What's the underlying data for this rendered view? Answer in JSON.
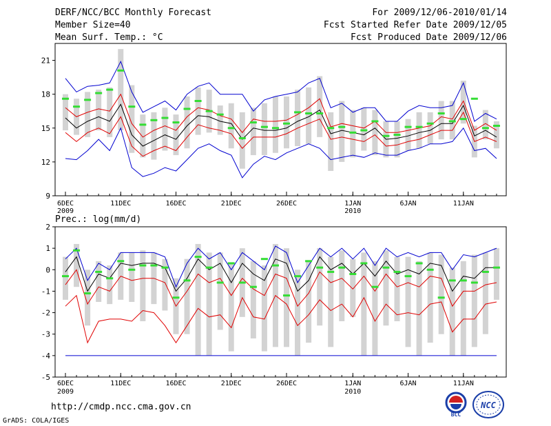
{
  "header": {
    "title": "DERF/NCC/BCC Monthly Forecast",
    "member_size": "Member Size=40",
    "variable": "Mean Surf. Temp.: °C",
    "period": "For 2009/12/06-2010/01/14",
    "started": "Fcst Started Refer Date 2009/12/05",
    "produced": "Fcst Produced Date 2009/12/06"
  },
  "footer": {
    "url": "http://cmdp.ncc.cma.gov.cn",
    "credit": "GrADS: COLA/IGES",
    "logo_left_text": "BCC",
    "logo_right_text": "NCC"
  },
  "colors": {
    "mean": "#000000",
    "spread": "#e00000",
    "extreme": "#0000d0",
    "obs": "#33dd33",
    "box": "#d3d3d3"
  },
  "chart_data": [
    {
      "type": "line",
      "title": "Mean Surf. Temp.: °C",
      "x_tick_labels": [
        "6DEC",
        "11DEC",
        "16DEC",
        "21DEC",
        "26DEC",
        "1JAN",
        "6JAN",
        "11JAN"
      ],
      "x_tick_days": [
        0,
        5,
        10,
        15,
        20,
        26,
        31,
        36
      ],
      "x_year_labels": [
        {
          "day": 0,
          "label": "2009"
        },
        {
          "day": 26,
          "label": "2010"
        }
      ],
      "ylim": [
        9,
        22.5
      ],
      "yticks": [
        9,
        12,
        15,
        18,
        21
      ],
      "series": [
        {
          "name": "max",
          "color_key": "extreme",
          "values": [
            19.4,
            18.2,
            18.7,
            18.8,
            19.0,
            20.9,
            18.2,
            16.4,
            16.9,
            17.4,
            16.6,
            18.0,
            18.7,
            19.0,
            18.0,
            18.0,
            18.0,
            16.5,
            17.5,
            17.8,
            18.0,
            18.2,
            19.0,
            19.4,
            16.8,
            17.2,
            16.4,
            16.8,
            16.8,
            15.6,
            15.6,
            16.5,
            17.0,
            16.8,
            16.8,
            17.0,
            19.0,
            15.6,
            16.3,
            15.8
          ]
        },
        {
          "name": "upper",
          "color_key": "spread",
          "values": [
            16.8,
            16.0,
            16.4,
            16.7,
            16.5,
            18.0,
            15.4,
            14.2,
            14.8,
            15.2,
            14.8,
            16.0,
            16.8,
            16.6,
            16.1,
            15.8,
            14.6,
            15.8,
            15.6,
            15.6,
            15.7,
            16.2,
            16.8,
            17.6,
            15.1,
            15.4,
            15.2,
            15.0,
            15.6,
            14.6,
            14.6,
            14.8,
            15.0,
            15.2,
            16.0,
            15.8,
            17.4,
            14.8,
            15.4,
            14.8
          ]
        },
        {
          "name": "mean",
          "color_key": "mean",
          "values": [
            15.9,
            15.0,
            15.6,
            16.0,
            15.6,
            17.1,
            14.4,
            13.4,
            13.9,
            14.4,
            14.0,
            15.2,
            16.1,
            16.0,
            15.6,
            15.4,
            14.0,
            15.0,
            14.8,
            14.8,
            15.0,
            15.6,
            16.0,
            16.6,
            14.5,
            14.8,
            14.6,
            14.4,
            15.0,
            14.0,
            14.1,
            14.3,
            14.6,
            14.8,
            15.4,
            15.4,
            17.0,
            14.3,
            14.8,
            14.2
          ]
        },
        {
          "name": "lower",
          "color_key": "spread",
          "values": [
            14.6,
            13.8,
            14.6,
            15.0,
            14.5,
            16.0,
            13.4,
            12.5,
            13.0,
            13.4,
            13.0,
            14.2,
            15.3,
            15.0,
            14.8,
            14.5,
            13.2,
            14.2,
            14.2,
            14.2,
            14.5,
            15.0,
            15.4,
            15.8,
            14.0,
            14.2,
            14.0,
            13.8,
            14.4,
            13.4,
            13.5,
            13.8,
            14.0,
            14.4,
            14.8,
            14.8,
            16.4,
            13.8,
            14.2,
            13.8
          ]
        },
        {
          "name": "min",
          "color_key": "extreme",
          "values": [
            12.3,
            12.2,
            13.0,
            14.0,
            13.0,
            15.0,
            11.5,
            10.7,
            11.0,
            11.5,
            11.2,
            12.2,
            13.2,
            13.6,
            13.0,
            12.6,
            10.6,
            11.8,
            12.5,
            12.2,
            12.8,
            13.2,
            13.6,
            13.2,
            12.2,
            12.4,
            12.6,
            12.4,
            12.8,
            12.6,
            12.6,
            13.0,
            13.2,
            13.6,
            13.6,
            13.8,
            15.0,
            13.0,
            13.2,
            12.3
          ]
        },
        {
          "name": "observed",
          "color_key": "obs",
          "values": [
            17.6,
            16.9,
            17.5,
            18.1,
            18.4,
            20.1,
            16.9,
            15.3,
            15.7,
            15.9,
            15.5,
            16.7,
            17.4,
            16.5,
            16.2,
            15.0,
            14.1,
            15.5,
            15.1,
            15.0,
            15.4,
            16.4,
            16.3,
            16.3,
            15.0,
            15.1,
            14.6,
            14.8,
            15.6,
            14.3,
            14.4,
            15.1,
            15.1,
            15.4,
            16.3,
            15.6,
            15.8,
            17.6,
            15.0,
            15.2
          ]
        },
        {
          "name": "box_top",
          "color_key": "box",
          "values": [
            18.0,
            17.6,
            18.2,
            18.4,
            18.6,
            22.0,
            18.8,
            16.2,
            16.4,
            16.8,
            16.2,
            17.8,
            18.6,
            18.4,
            17.0,
            17.2,
            16.4,
            16.8,
            17.2,
            17.8,
            17.8,
            18.4,
            18.6,
            19.6,
            16.4,
            17.4,
            16.6,
            16.8,
            16.6,
            15.6,
            15.6,
            15.8,
            16.4,
            16.4,
            17.4,
            17.4,
            19.2,
            15.2,
            16.6,
            15.6
          ]
        },
        {
          "name": "box_bottom",
          "color_key": "box",
          "values": [
            14.8,
            14.4,
            14.2,
            14.8,
            14.2,
            14.8,
            12.8,
            12.4,
            12.2,
            13.0,
            12.6,
            13.2,
            14.4,
            14.6,
            14.4,
            13.2,
            11.4,
            12.6,
            12.6,
            12.8,
            13.2,
            13.4,
            13.6,
            14.2,
            11.2,
            12.0,
            12.4,
            13.0,
            12.6,
            12.4,
            12.4,
            13.0,
            13.2,
            13.6,
            14.0,
            14.0,
            15.4,
            12.4,
            14.0,
            13.2
          ]
        }
      ]
    },
    {
      "type": "line",
      "title": "Prec.: log(mm/d)",
      "x_tick_labels": [
        "6DEC",
        "11DEC",
        "16DEC",
        "21DEC",
        "26DEC",
        "1JAN",
        "6JAN",
        "11JAN"
      ],
      "x_tick_days": [
        0,
        5,
        10,
        15,
        20,
        26,
        31,
        36
      ],
      "x_year_labels": [
        {
          "day": 0,
          "label": "2009"
        },
        {
          "day": 26,
          "label": "2010"
        }
      ],
      "ylim": [
        -5,
        2
      ],
      "yticks": [
        -5,
        -4,
        -3,
        -2,
        -1,
        0,
        1,
        2
      ],
      "series": [
        {
          "name": "max",
          "color_key": "extreme",
          "values": [
            0.5,
            1.0,
            -0.5,
            0.3,
            0.0,
            0.8,
            0.8,
            0.8,
            0.8,
            0.6,
            -0.8,
            0.3,
            1.0,
            0.5,
            0.8,
            0.0,
            0.8,
            0.4,
            0.0,
            1.1,
            0.8,
            -0.6,
            0.2,
            1.0,
            0.6,
            1.0,
            0.5,
            1.0,
            0.2,
            1.0,
            0.6,
            0.8,
            0.6,
            0.8,
            0.8,
            0.0,
            0.7,
            0.6,
            0.8,
            1.0
          ]
        },
        {
          "name": "mean",
          "color_key": "mean",
          "values": [
            -0.1,
            0.6,
            -1.0,
            -0.2,
            -0.4,
            0.3,
            0.2,
            0.3,
            0.3,
            0.1,
            -1.0,
            -0.4,
            0.5,
            0.0,
            0.3,
            -0.6,
            0.3,
            -0.2,
            -0.5,
            0.5,
            0.3,
            -1.0,
            -0.5,
            0.6,
            0.0,
            0.3,
            -0.2,
            0.3,
            -0.3,
            0.4,
            -0.2,
            0.0,
            -0.2,
            0.3,
            0.2,
            -1.0,
            -0.3,
            -0.4,
            0.1,
            0.1
          ]
        },
        {
          "name": "upper",
          "color_key": "spread",
          "values": [
            -0.7,
            0.0,
            -1.6,
            -0.8,
            -1.0,
            -0.3,
            -0.5,
            -0.4,
            -0.4,
            -0.6,
            -1.7,
            -1.0,
            -0.2,
            -0.6,
            -0.4,
            -1.2,
            -0.4,
            -0.9,
            -1.2,
            -0.2,
            -0.4,
            -1.7,
            -1.1,
            -0.1,
            -0.6,
            -0.4,
            -0.9,
            -0.3,
            -1.0,
            -0.2,
            -0.8,
            -0.6,
            -0.8,
            -0.3,
            -0.4,
            -1.7,
            -1.0,
            -1.0,
            -0.7,
            -0.6
          ]
        },
        {
          "name": "lower",
          "color_key": "spread",
          "values": [
            -1.7,
            -1.2,
            -3.4,
            -2.4,
            -2.3,
            -2.3,
            -2.4,
            -1.9,
            -2.0,
            -2.6,
            -3.4,
            -2.6,
            -1.8,
            -2.2,
            -2.1,
            -2.7,
            -1.3,
            -2.2,
            -2.3,
            -1.2,
            -1.6,
            -2.6,
            -2.1,
            -1.4,
            -1.9,
            -1.6,
            -2.2,
            -1.3,
            -2.4,
            -1.6,
            -2.1,
            -2.0,
            -2.1,
            -1.6,
            -1.5,
            -2.9,
            -2.3,
            -2.3,
            -1.6,
            -1.5
          ]
        },
        {
          "name": "min",
          "color_key": "extreme",
          "values": [
            -4,
            -4,
            -4,
            -4,
            -4,
            -4,
            -4,
            -4,
            -4,
            -4,
            -4,
            -4,
            -4,
            -4,
            -4,
            -4,
            -4,
            -4,
            -4,
            -4,
            -4,
            -4,
            -4,
            -4,
            -4,
            -4,
            -4,
            -4,
            -4,
            -4,
            -4,
            -4,
            -4,
            -4,
            -4,
            -4,
            -4,
            -4,
            -4,
            -4
          ]
        },
        {
          "name": "observed",
          "color_key": "obs",
          "values": [
            -0.3,
            0.9,
            -1.1,
            -0.1,
            -0.4,
            0.4,
            0.0,
            0.2,
            0.2,
            0.1,
            -1.3,
            -0.5,
            0.6,
            0.1,
            -0.6,
            0.3,
            -0.6,
            -0.8,
            0.5,
            0.2,
            -1.2,
            -0.3,
            0.4,
            0.1,
            -0.1,
            0.1,
            -0.2,
            0.3,
            -0.8,
            0.1,
            -0.1,
            -0.3,
            0.3,
            0.0,
            -1.3,
            -0.5,
            -0.5,
            -0.6,
            -0.1,
            0.1
          ]
        },
        {
          "name": "box_top",
          "color_key": "box",
          "values": [
            0.6,
            1.2,
            0.0,
            0.4,
            0.2,
            0.8,
            0.8,
            0.9,
            0.8,
            0.5,
            -0.4,
            0.5,
            1.2,
            0.8,
            0.8,
            0.3,
            1.0,
            0.4,
            0.2,
            1.2,
            1.0,
            0.0,
            0.4,
            1.0,
            0.6,
            0.9,
            0.5,
            0.8,
            0.4,
            0.9,
            0.6,
            0.6,
            0.4,
            0.8,
            0.7,
            0.1,
            0.4,
            0.7,
            0.8,
            1.0
          ]
        },
        {
          "name": "box_bottom",
          "color_key": "box",
          "values": [
            -1.4,
            -0.8,
            -2.6,
            -1.5,
            -1.6,
            -1.4,
            -1.5,
            -2.4,
            -1.6,
            -1.9,
            -3.0,
            -3.0,
            -4.0,
            -4.0,
            -2.8,
            -3.8,
            -2.2,
            -3.2,
            -3.8,
            -3.6,
            -3.6,
            -4.0,
            -3.4,
            -2.6,
            -3.6,
            -2.4,
            -2.2,
            -4.0,
            -4.0,
            -2.6,
            -2.4,
            -3.6,
            -4.0,
            -3.4,
            -3.0,
            -4.0,
            -4.0,
            -3.6,
            -3.0,
            -1.4
          ]
        }
      ]
    }
  ]
}
